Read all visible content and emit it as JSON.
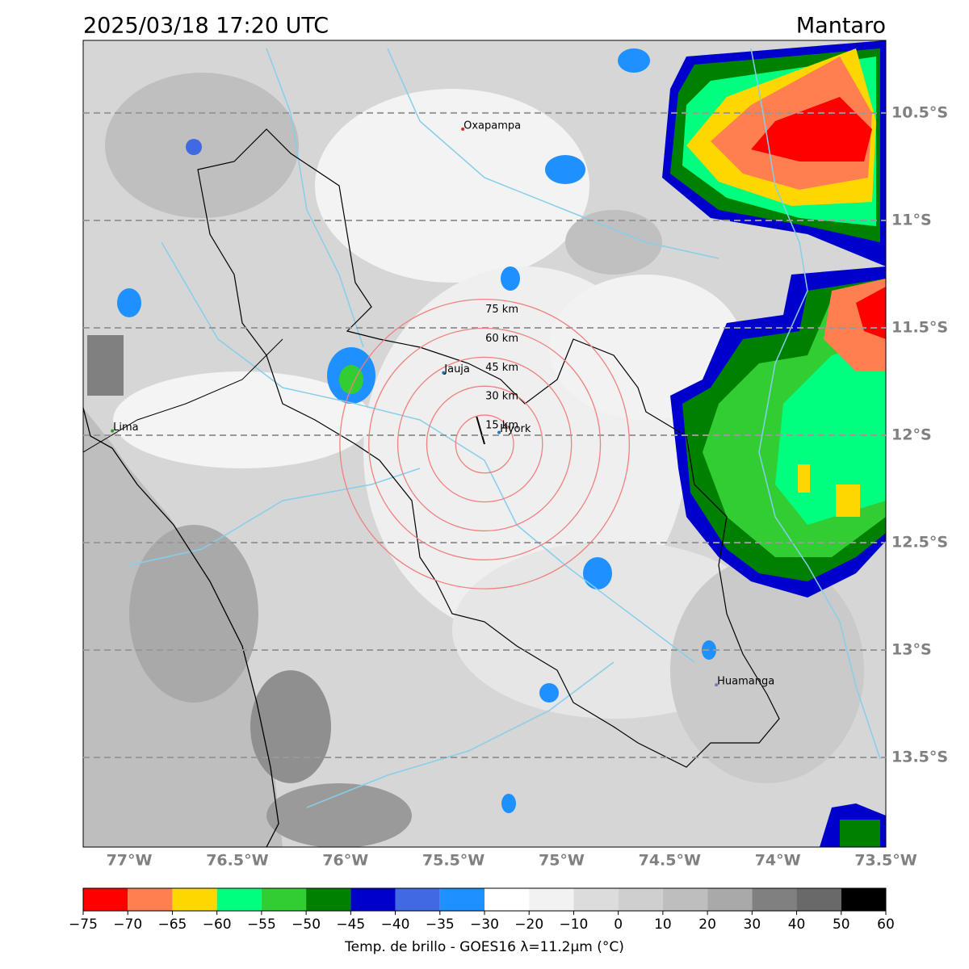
{
  "header": {
    "title": "2025/03/18 17:20 UTC",
    "region": "Mantaro"
  },
  "map": {
    "xlim": [
      -77.213,
      -73.5
    ],
    "ylim": [
      -13.917,
      -10.162
    ],
    "xticks": [
      {
        "value": -77,
        "label": "77°W"
      },
      {
        "value": -76.5,
        "label": "76.5°W"
      },
      {
        "value": -76,
        "label": "76°W"
      },
      {
        "value": -75.5,
        "label": "75.5°W"
      },
      {
        "value": -75,
        "label": "75°W"
      },
      {
        "value": -74.5,
        "label": "74.5°W"
      },
      {
        "value": -74,
        "label": "74°W"
      },
      {
        "value": -73.5,
        "label": "73.5°W"
      }
    ],
    "yticks": [
      {
        "value": -10.5,
        "label": "10.5°S"
      },
      {
        "value": -11,
        "label": "11°S"
      },
      {
        "value": -11.5,
        "label": "11.5°S"
      },
      {
        "value": -12,
        "label": "12°S"
      },
      {
        "value": -12.5,
        "label": "12.5°S"
      },
      {
        "value": -13,
        "label": "13°S"
      },
      {
        "value": -13.5,
        "label": "13.5°S"
      }
    ],
    "grid": true,
    "places": [
      {
        "name": "Oxapampa",
        "lon": -75.457,
        "lat": -10.575,
        "color": "#d62728"
      },
      {
        "name": "Jauja",
        "lon": -75.546,
        "lat": -11.709,
        "color": "#1f77b4"
      },
      {
        "name": "Lima",
        "lon": -77.078,
        "lat": -11.98,
        "color": "#2ca02c"
      },
      {
        "name": "Hyork",
        "lon": -75.289,
        "lat": -11.987,
        "color": "#1f77b4"
      },
      {
        "name": "Huamanga",
        "lon": -74.284,
        "lat": -13.162,
        "color": "#9467bd"
      }
    ],
    "rings": {
      "center": [
        -75.356,
        -12.041
      ],
      "color": "#f08080",
      "radii": [
        {
          "value": 15,
          "label": "15 km"
        },
        {
          "value": 30,
          "label": "30 km"
        },
        {
          "value": 45,
          "label": "45 km"
        },
        {
          "value": 60,
          "label": "60 km"
        },
        {
          "value": 75,
          "label": "75 km"
        }
      ]
    }
  },
  "colorbar": {
    "label": "Temp. de brillo - GOES16 λ=11.2μm (°C)",
    "ticks": [
      {
        "value": -75,
        "label": "−75"
      },
      {
        "value": -70,
        "label": "−70"
      },
      {
        "value": -65,
        "label": "−65"
      },
      {
        "value": -60,
        "label": "−60"
      },
      {
        "value": -55,
        "label": "−55"
      },
      {
        "value": -50,
        "label": "−50"
      },
      {
        "value": -45,
        "label": "−45"
      },
      {
        "value": -40,
        "label": "−40"
      },
      {
        "value": -35,
        "label": "−35"
      },
      {
        "value": -30,
        "label": "−30"
      },
      {
        "value": -20,
        "label": "−20"
      },
      {
        "value": -10,
        "label": "−10"
      },
      0,
      10,
      20,
      30,
      40,
      50,
      60
    ],
    "colors": [
      "#ff0000",
      "#ff7f50",
      "#ffd700",
      "#00ff7f",
      "#32cd32",
      "#008000",
      "#0000cd",
      "#4169e1",
      "#1e90ff",
      "#ffffff",
      "#f2f2f2",
      "#dcdcdc",
      "#cfcfcf",
      "#bebebe",
      "#a9a9a9",
      "#808080",
      "#696969",
      "#000000"
    ]
  }
}
